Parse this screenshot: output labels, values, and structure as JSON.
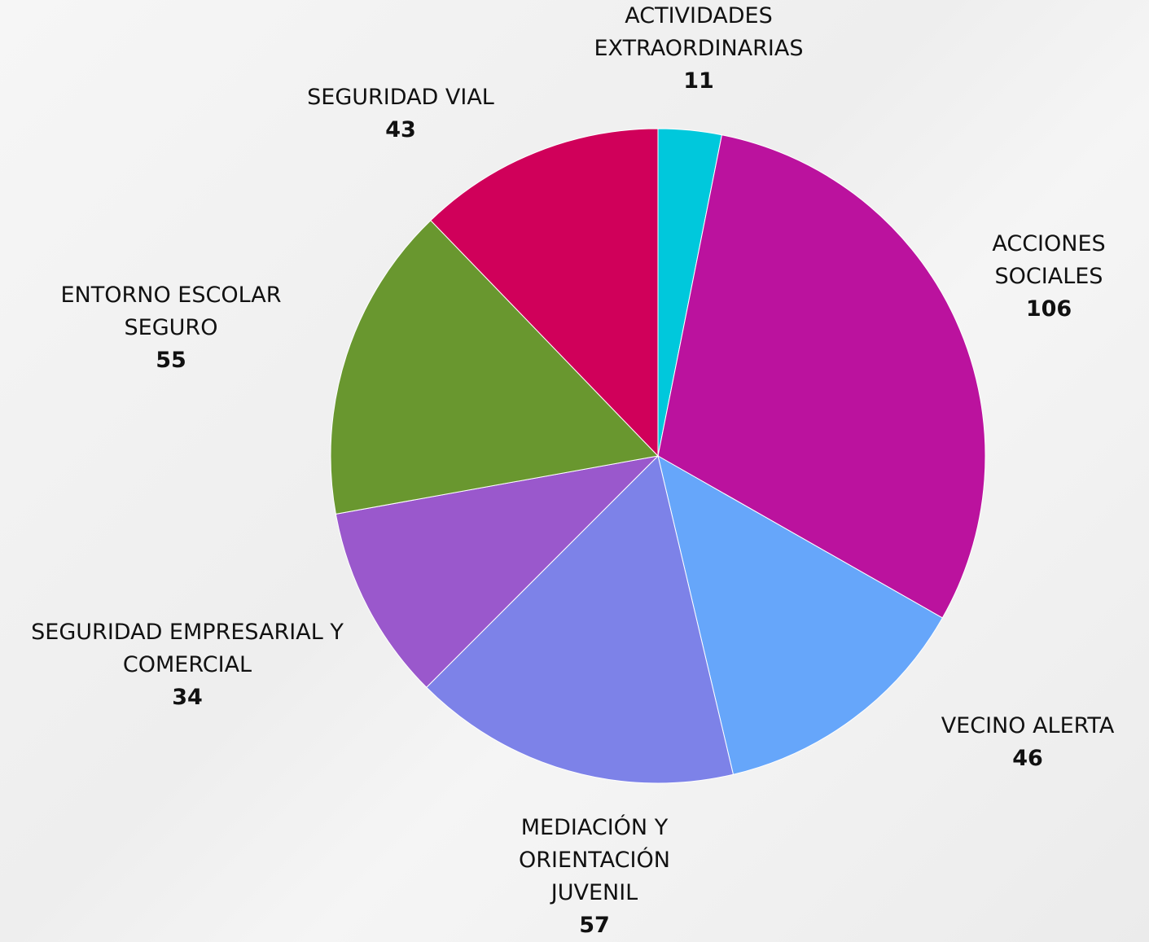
{
  "chart_data": {
    "type": "pie",
    "categories": [
      "ACTIVIDADES EXTRAORDINARIAS",
      "ACCIONES SOCIALES",
      "VECINO ALERTA",
      "MEDIACIÓN Y ORIENTACIÓN JUVENIL",
      "SEGURIDAD EMPRESARIAL Y COMERCIAL",
      "ENTORNO ESCOLAR SEGURO",
      "SEGURIDAD VIAL"
    ],
    "values": [
      11,
      106,
      46,
      57,
      34,
      55,
      43
    ],
    "colors": [
      "#00c8dc",
      "#bb129e",
      "#66a6fa",
      "#7d82e8",
      "#9a58cc",
      "#69972f",
      "#d0005a"
    ]
  }
}
